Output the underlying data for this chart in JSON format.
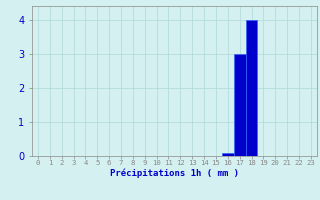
{
  "hours": [
    0,
    1,
    2,
    3,
    4,
    5,
    6,
    7,
    8,
    9,
    10,
    11,
    12,
    13,
    14,
    15,
    16,
    17,
    18,
    19,
    20,
    21,
    22,
    23
  ],
  "values": [
    0,
    0,
    0,
    0,
    0,
    0,
    0,
    0,
    0,
    0,
    0,
    0,
    0,
    0,
    0,
    0,
    0.1,
    3.0,
    4.0,
    0,
    0,
    0,
    0,
    0
  ],
  "bar_color": "#0000cc",
  "bar_edge_color": "#3366ff",
  "background_color": "#d4f0f0",
  "grid_color": "#b0d8d8",
  "xlabel": "Précipitations 1h ( mm )",
  "xlabel_color": "#0000cc",
  "tick_color": "#0000cc",
  "axis_color": "#888888",
  "ylim": [
    0,
    4.4
  ],
  "yticks": [
    0,
    1,
    2,
    3,
    4
  ],
  "xlim": [
    -0.5,
    23.5
  ]
}
